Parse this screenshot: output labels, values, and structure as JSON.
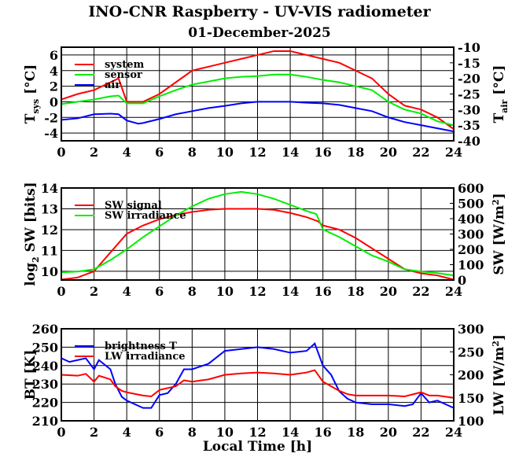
{
  "title": "INO-CNR Raspberry - UV-VIS radiometer",
  "subtitle": "01-December-2025",
  "chart_data": [
    {
      "type": "line",
      "xlabel": "",
      "xlim": [
        0,
        24
      ],
      "xticks": [
        0,
        2,
        4,
        6,
        8,
        10,
        12,
        14,
        16,
        18,
        20,
        22,
        24
      ],
      "ylabel": "T",
      "ylabel_sub": "sys",
      "ylabel_unit": " [°C]",
      "ylim": [
        -5,
        7
      ],
      "yticks": [
        -4,
        -2,
        0,
        2,
        4,
        6
      ],
      "y2label": "T",
      "y2label_sub": "air",
      "y2label_unit": " [°C]",
      "y2lim": [
        -40,
        -10
      ],
      "y2ticks": [
        -40,
        -35,
        -30,
        -25,
        -20,
        -15,
        -10
      ],
      "legend": "top-left",
      "series": [
        {
          "name": "system",
          "color": "#ff0000",
          "axis": "left",
          "x": [
            0,
            1,
            2,
            3,
            3.5,
            4,
            5,
            6,
            7,
            8,
            9,
            10,
            11,
            12,
            13,
            14,
            15,
            16,
            17,
            18,
            19,
            20,
            21,
            22,
            23,
            24
          ],
          "y": [
            0.3,
            1,
            1.5,
            2.5,
            3,
            0,
            0,
            1,
            2.5,
            4,
            4.5,
            5,
            5.5,
            6,
            6.5,
            6.5,
            6,
            5.5,
            5,
            4,
            3,
            1,
            -0.5,
            -1,
            -2,
            -3.5
          ]
        },
        {
          "name": "sensor",
          "color": "#00ee00",
          "axis": "left",
          "x": [
            0,
            1,
            2,
            3,
            3.5,
            4,
            5,
            6,
            7,
            8,
            9,
            10,
            11,
            12,
            13,
            14,
            15,
            16,
            17,
            18,
            19,
            20,
            21,
            22,
            23,
            24
          ],
          "y": [
            -0.3,
            0,
            0.3,
            0.7,
            0.8,
            -0.2,
            -0.2,
            0.7,
            1.5,
            2.2,
            2.6,
            3,
            3.2,
            3.3,
            3.5,
            3.5,
            3.2,
            2.8,
            2.5,
            2,
            1.5,
            0,
            -1,
            -1.5,
            -2.5,
            -3
          ]
        },
        {
          "name": "air",
          "color": "#0000ff",
          "axis": "right",
          "x": [
            0,
            1,
            2,
            3,
            3.5,
            4,
            4.7,
            5,
            6,
            7,
            8,
            9,
            10,
            11,
            12,
            13,
            14,
            15,
            16,
            17,
            18,
            19,
            20,
            21,
            22,
            23,
            24
          ],
          "y": [
            -33.3,
            -32.8,
            -31.5,
            -31.3,
            -31.5,
            -33.5,
            -34.5,
            -34.3,
            -33,
            -31.5,
            -30.5,
            -29.5,
            -28.8,
            -28,
            -27.5,
            -27.5,
            -27.5,
            -27.8,
            -28,
            -28.5,
            -29.5,
            -30.5,
            -32.5,
            -34,
            -35,
            -36,
            -37
          ]
        }
      ]
    },
    {
      "type": "line",
      "xlabel": "",
      "xlim": [
        0,
        24
      ],
      "xticks": [
        0,
        2,
        4,
        6,
        8,
        10,
        12,
        14,
        16,
        18,
        20,
        22,
        24
      ],
      "ylabel": "log",
      "ylabel_sub": "2",
      "ylabel_unit": " SW [bits]",
      "ylim": [
        9.58,
        14
      ],
      "yticks": [
        10,
        11,
        12,
        13,
        14
      ],
      "y2label": "SW [W/m",
      "y2label_sub": "2",
      "y2label_unit": "]",
      "y2lim": [
        0,
        600
      ],
      "y2ticks": [
        0,
        100,
        200,
        300,
        400,
        500,
        600
      ],
      "legend": "top-left",
      "series": [
        {
          "name": "SW signal",
          "color": "#ff0000",
          "axis": "left",
          "x": [
            0,
            1,
            2,
            3,
            4,
            5,
            6,
            7,
            8,
            9,
            10,
            11,
            12,
            13,
            14,
            15,
            15.7,
            16,
            17,
            18,
            19,
            20,
            21,
            22,
            23,
            24
          ],
          "y": [
            9.6,
            9.7,
            10,
            10.9,
            11.8,
            12.2,
            12.5,
            12.7,
            12.85,
            12.95,
            13,
            13,
            13,
            12.95,
            12.8,
            12.6,
            12.4,
            12.2,
            12,
            11.6,
            11.1,
            10.6,
            10.1,
            9.9,
            9.8,
            9.6
          ]
        },
        {
          "name": "SW irradiance",
          "color": "#00ee00",
          "axis": "right",
          "x": [
            0,
            1,
            2,
            3,
            4,
            5,
            6,
            7,
            8,
            9,
            10,
            11,
            12,
            13,
            14,
            15,
            15.6,
            16,
            17,
            18,
            19,
            20,
            21,
            22,
            23,
            24
          ],
          "y": [
            50,
            55,
            70,
            130,
            200,
            280,
            350,
            420,
            480,
            530,
            560,
            575,
            560,
            530,
            490,
            450,
            430,
            330,
            280,
            220,
            160,
            120,
            70,
            55,
            45,
            30
          ]
        }
      ]
    },
    {
      "type": "line",
      "xlabel": "Local Time [h]",
      "xlim": [
        0,
        24
      ],
      "xticks": [
        0,
        2,
        4,
        6,
        8,
        10,
        12,
        14,
        16,
        18,
        20,
        22,
        24
      ],
      "ylabel": "BT [K]",
      "ylabel_sub": "",
      "ylabel_unit": "",
      "ylim": [
        210,
        260
      ],
      "yticks": [
        210,
        220,
        230,
        240,
        250,
        260
      ],
      "y2label": "LW [W/m",
      "y2label_sub": "2",
      "y2label_unit": "]",
      "y2lim": [
        100,
        300
      ],
      "y2ticks": [
        100,
        150,
        200,
        250,
        300
      ],
      "legend": "top-left",
      "series": [
        {
          "name": "brightness T",
          "color": "#0000ff",
          "axis": "left",
          "x": [
            0,
            0.5,
            1,
            1.5,
            2,
            2.3,
            3,
            3.3,
            3.7,
            4,
            5,
            5.5,
            6,
            6.5,
            7,
            7.5,
            8,
            9,
            10,
            11,
            12,
            13,
            14,
            15,
            15.5,
            16,
            16.5,
            17,
            17.5,
            18,
            19,
            20,
            21,
            21.5,
            22,
            22.5,
            23,
            24
          ],
          "y": [
            244,
            242,
            243,
            244,
            238,
            243,
            238,
            230,
            223,
            221,
            217,
            217,
            224,
            225,
            230,
            238,
            238,
            241,
            248,
            249,
            250,
            249,
            247,
            248,
            252,
            240,
            235,
            226,
            222,
            220,
            219,
            219,
            218,
            219,
            225,
            220,
            221,
            217
          ]
        },
        {
          "name": "LW irradiance",
          "color": "#ff0000",
          "axis": "right",
          "x": [
            0,
            1,
            1.5,
            2,
            2.3,
            3,
            3.3,
            3.7,
            4,
            5,
            5.5,
            6,
            7,
            7.5,
            8,
            9,
            10,
            11,
            12,
            13,
            14,
            15,
            15.5,
            16,
            17,
            17.5,
            18,
            19,
            20,
            21,
            22,
            22.5,
            23,
            24
          ],
          "y": [
            200,
            198,
            202,
            185,
            198,
            190,
            175,
            165,
            162,
            155,
            153,
            167,
            175,
            188,
            185,
            190,
            200,
            203,
            205,
            203,
            200,
            205,
            210,
            185,
            165,
            158,
            155,
            155,
            155,
            153,
            162,
            155,
            155,
            150
          ]
        }
      ]
    }
  ]
}
